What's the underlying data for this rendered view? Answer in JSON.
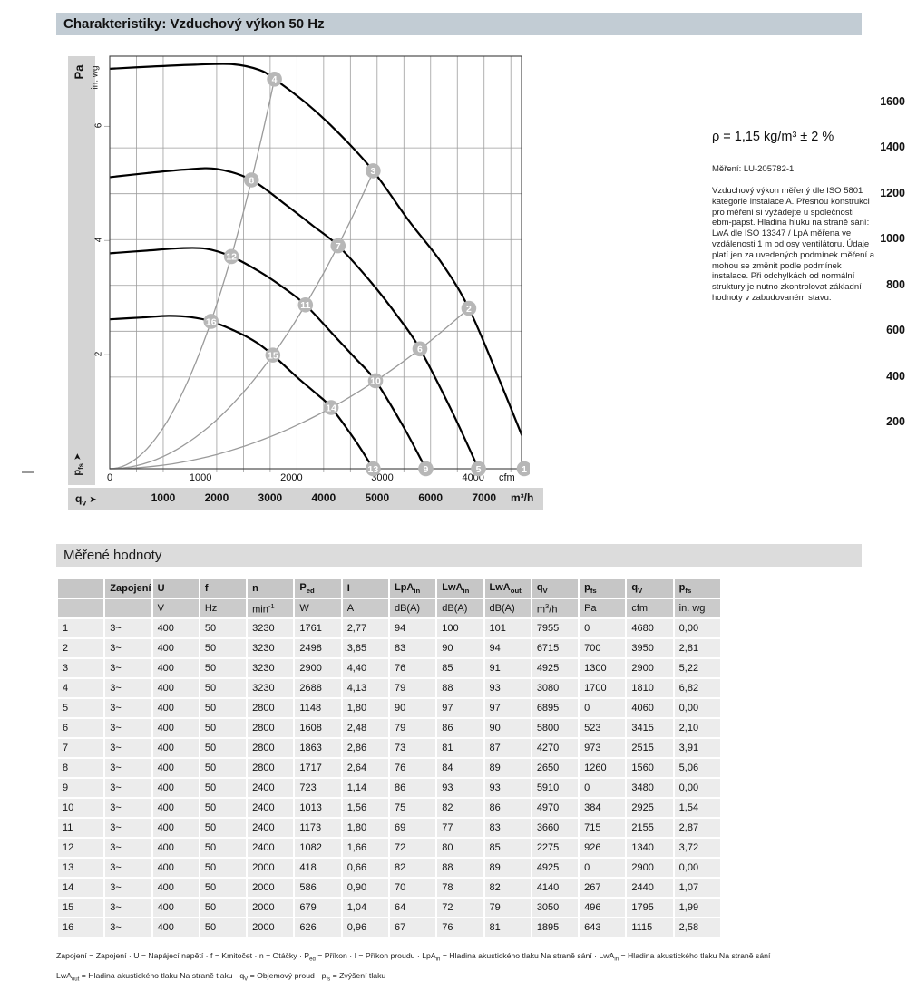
{
  "page": {
    "title": "Charakteristiky: Vzduchový výkon 50 Hz",
    "section_title": "Měřené hodnoty"
  },
  "side_text": {
    "density": "ρ = 1,15 kg/m³ ± 2 %",
    "measurement": "Měření: LU-205782-1",
    "note": "Vzduchový výkon měřený dle ISO 5801 kategorie instalace A. Přesnou konstrukci pro měření si vyžádejte u společnosti ebm-papst. Hladina hluku na straně sání: LwA dle ISO 13347 / LpA měřena ve vzdálenosti 1 m od osy ventilátoru. Údaje platí jen za uvedených podmínek měření a mohou se změnit podle podmínek instalace. Při odchylkách od normální struktury je nutno zkontrolovat základní hodnoty v zabudovaném stavu."
  },
  "chart_data": {
    "type": "line",
    "title": "Vzduchový výkon 50 Hz",
    "x_axis": {
      "qv_label": "q_{v}",
      "arrow": "➤",
      "unit_m3h": "m³/h",
      "unit_cfm": "cfm",
      "m3h_ticks": [
        1000,
        2000,
        3000,
        4000,
        5000,
        6000,
        7000
      ],
      "cfm_ticks": [
        0,
        1000,
        2000,
        3000,
        4000
      ],
      "xlim_m3h": [
        0,
        7700
      ],
      "grid_step_m3h": 500
    },
    "y_axis": {
      "pa_label": "Pa",
      "inwg_label": "in. wg",
      "pfs_label": "p_{fs}",
      "arrow": "➤",
      "pa_ticks": [
        200,
        400,
        600,
        800,
        1000,
        1200,
        1400,
        1600
      ],
      "inwg_ticks": [
        2,
        4,
        6
      ],
      "ylim_pa": [
        0,
        1800
      ],
      "grid_step_pa": 200,
      "pa_per_inwg": 249
    },
    "fan_curves": [
      {
        "name": "3230 min-1",
        "points": [
          [
            0,
            1745
          ],
          [
            800,
            1755
          ],
          [
            1600,
            1763
          ],
          [
            2300,
            1765
          ],
          [
            2800,
            1740
          ],
          [
            3080,
            1700
          ],
          [
            3700,
            1590
          ],
          [
            4300,
            1460
          ],
          [
            4925,
            1300
          ],
          [
            5600,
            1080
          ],
          [
            6200,
            900
          ],
          [
            6715,
            700
          ],
          [
            7300,
            380
          ],
          [
            7955,
            0
          ]
        ]
      },
      {
        "name": "2800 min-1",
        "points": [
          [
            0,
            1272
          ],
          [
            700,
            1290
          ],
          [
            1400,
            1305
          ],
          [
            2000,
            1308
          ],
          [
            2650,
            1260
          ],
          [
            3300,
            1150
          ],
          [
            3800,
            1060
          ],
          [
            4270,
            973
          ],
          [
            4900,
            810
          ],
          [
            5400,
            660
          ],
          [
            5800,
            523
          ],
          [
            6400,
            250
          ],
          [
            6895,
            0
          ]
        ]
      },
      {
        "name": "2400 min-1",
        "points": [
          [
            0,
            940
          ],
          [
            700,
            952
          ],
          [
            1300,
            962
          ],
          [
            1800,
            960
          ],
          [
            2275,
            926
          ],
          [
            2800,
            860
          ],
          [
            3250,
            790
          ],
          [
            3660,
            715
          ],
          [
            4200,
            580
          ],
          [
            4600,
            480
          ],
          [
            4970,
            384
          ],
          [
            5500,
            180
          ],
          [
            5910,
            0
          ]
        ]
      },
      {
        "name": "2000 min-1",
        "points": [
          [
            0,
            652
          ],
          [
            600,
            660
          ],
          [
            1100,
            667
          ],
          [
            1500,
            662
          ],
          [
            1895,
            643
          ],
          [
            2400,
            595
          ],
          [
            2750,
            550
          ],
          [
            3050,
            496
          ],
          [
            3500,
            400
          ],
          [
            3850,
            330
          ],
          [
            4140,
            267
          ],
          [
            4600,
            120
          ],
          [
            4925,
            0
          ]
        ]
      }
    ],
    "system_curves": [
      {
        "k": 0.0001792,
        "qv_end": 3080
      },
      {
        "k": 5.34e-05,
        "qv_end": 4925
      },
      {
        "k": 1.552e-05,
        "qv_end": 6715
      }
    ],
    "operating_points": [
      {
        "n": 1,
        "qv": 7955,
        "pfs": 0
      },
      {
        "n": 2,
        "qv": 6715,
        "pfs": 700
      },
      {
        "n": 3,
        "qv": 4925,
        "pfs": 1300
      },
      {
        "n": 4,
        "qv": 3080,
        "pfs": 1700
      },
      {
        "n": 5,
        "qv": 6895,
        "pfs": 0
      },
      {
        "n": 6,
        "qv": 5800,
        "pfs": 523
      },
      {
        "n": 7,
        "qv": 4270,
        "pfs": 973
      },
      {
        "n": 8,
        "qv": 2650,
        "pfs": 1260
      },
      {
        "n": 9,
        "qv": 5910,
        "pfs": 0
      },
      {
        "n": 10,
        "qv": 4970,
        "pfs": 384
      },
      {
        "n": 11,
        "qv": 3660,
        "pfs": 715
      },
      {
        "n": 12,
        "qv": 2275,
        "pfs": 926
      },
      {
        "n": 13,
        "qv": 4925,
        "pfs": 0
      },
      {
        "n": 14,
        "qv": 4140,
        "pfs": 267
      },
      {
        "n": 15,
        "qv": 3050,
        "pfs": 496
      },
      {
        "n": 16,
        "qv": 1895,
        "pfs": 643
      }
    ],
    "colors": {
      "fan_curve": "#000000",
      "system_curve": "#9a9a9a",
      "grid": "#9e9e9e",
      "border": "#3c3c3c",
      "marker_fill": "#b7b7b7",
      "marker_text": "#ffffff"
    }
  },
  "table": {
    "headers": [
      "",
      "Zapojení",
      "U",
      "f",
      "n",
      "P_{ed}",
      "I",
      "LpA_{in}",
      "LwA_{in}",
      "LwA_{out}",
      "q_{V}",
      "p_{fs}",
      "q_{V}",
      "p_{fs}"
    ],
    "units": [
      "",
      "",
      "V",
      "Hz",
      "min^{-1}",
      "W",
      "A",
      "dB(A)",
      "dB(A)",
      "dB(A)",
      "m^{3}/h",
      "Pa",
      "cfm",
      "in. wg"
    ],
    "rows": [
      [
        "1",
        "3~",
        "400",
        "50",
        "3230",
        "1761",
        "2,77",
        "94",
        "100",
        "101",
        "7955",
        "0",
        "4680",
        "0,00"
      ],
      [
        "2",
        "3~",
        "400",
        "50",
        "3230",
        "2498",
        "3,85",
        "83",
        "90",
        "94",
        "6715",
        "700",
        "3950",
        "2,81"
      ],
      [
        "3",
        "3~",
        "400",
        "50",
        "3230",
        "2900",
        "4,40",
        "76",
        "85",
        "91",
        "4925",
        "1300",
        "2900",
        "5,22"
      ],
      [
        "4",
        "3~",
        "400",
        "50",
        "3230",
        "2688",
        "4,13",
        "79",
        "88",
        "93",
        "3080",
        "1700",
        "1810",
        "6,82"
      ],
      [
        "5",
        "3~",
        "400",
        "50",
        "2800",
        "1148",
        "1,80",
        "90",
        "97",
        "97",
        "6895",
        "0",
        "4060",
        "0,00"
      ],
      [
        "6",
        "3~",
        "400",
        "50",
        "2800",
        "1608",
        "2,48",
        "79",
        "86",
        "90",
        "5800",
        "523",
        "3415",
        "2,10"
      ],
      [
        "7",
        "3~",
        "400",
        "50",
        "2800",
        "1863",
        "2,86",
        "73",
        "81",
        "87",
        "4270",
        "973",
        "2515",
        "3,91"
      ],
      [
        "8",
        "3~",
        "400",
        "50",
        "2800",
        "1717",
        "2,64",
        "76",
        "84",
        "89",
        "2650",
        "1260",
        "1560",
        "5,06"
      ],
      [
        "9",
        "3~",
        "400",
        "50",
        "2400",
        "723",
        "1,14",
        "86",
        "93",
        "93",
        "5910",
        "0",
        "3480",
        "0,00"
      ],
      [
        "10",
        "3~",
        "400",
        "50",
        "2400",
        "1013",
        "1,56",
        "75",
        "82",
        "86",
        "4970",
        "384",
        "2925",
        "1,54"
      ],
      [
        "11",
        "3~",
        "400",
        "50",
        "2400",
        "1173",
        "1,80",
        "69",
        "77",
        "83",
        "3660",
        "715",
        "2155",
        "2,87"
      ],
      [
        "12",
        "3~",
        "400",
        "50",
        "2400",
        "1082",
        "1,66",
        "72",
        "80",
        "85",
        "2275",
        "926",
        "1340",
        "3,72"
      ],
      [
        "13",
        "3~",
        "400",
        "50",
        "2000",
        "418",
        "0,66",
        "82",
        "88",
        "89",
        "4925",
        "0",
        "2900",
        "0,00"
      ],
      [
        "14",
        "3~",
        "400",
        "50",
        "2000",
        "586",
        "0,90",
        "70",
        "78",
        "82",
        "4140",
        "267",
        "2440",
        "1,07"
      ],
      [
        "15",
        "3~",
        "400",
        "50",
        "2000",
        "679",
        "1,04",
        "64",
        "72",
        "79",
        "3050",
        "496",
        "1795",
        "1,99"
      ],
      [
        "16",
        "3~",
        "400",
        "50",
        "2000",
        "626",
        "0,96",
        "67",
        "76",
        "81",
        "1895",
        "643",
        "1115",
        "2,58"
      ]
    ]
  },
  "legend_lines": [
    "Zapojení = Zapojení · U = Napájecí napětí · f = Kmitočet · n = Otáčky · P_{ed} = Příkon · I = Příkon proudu · LpA_{in} = Hladina akustického tlaku Na straně sání · LwA_{in} = Hladina akustického tlaku Na straně sání",
    "LwA_{out} = Hladina akustického tlaku Na straně tlaku · q_{V} = Objemový proud · p_{fs} = Zvýšení tlaku"
  ]
}
